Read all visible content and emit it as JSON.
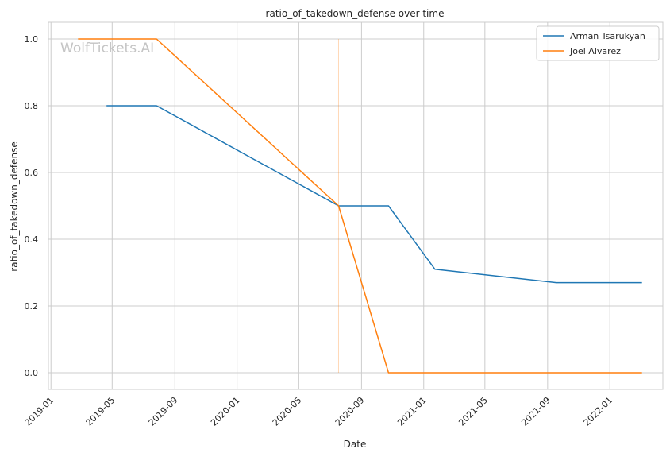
{
  "chart_data": {
    "type": "line",
    "title": "ratio_of_takedown_defense over time",
    "xlabel": "Date",
    "ylabel": "ratio_of_takedown_defense",
    "watermark": "WolfTickets.AI",
    "x_tick_labels": [
      "2019-01",
      "2019-05",
      "2019-09",
      "2020-01",
      "2020-05",
      "2020-09",
      "2021-01",
      "2021-05",
      "2021-09",
      "2022-01"
    ],
    "x_tick_dates": [
      "2019-01-01",
      "2019-05-01",
      "2019-09-01",
      "2020-01-01",
      "2020-05-01",
      "2020-09-01",
      "2021-01-01",
      "2021-05-01",
      "2021-09-01",
      "2022-01-01"
    ],
    "xlim": [
      "2018-12-27",
      "2022-04-15"
    ],
    "y_ticks": [
      0.0,
      0.2,
      0.4,
      0.6,
      0.8,
      1.0
    ],
    "y_tick_labels": [
      "0.0",
      "0.2",
      "0.4",
      "0.6",
      "0.8",
      "1.0"
    ],
    "ylim": [
      -0.05,
      1.05
    ],
    "grid": true,
    "legend_position": "top-right",
    "series": [
      {
        "name": "Arman Tsarukyan",
        "color": "#1f77b4",
        "points": [
          {
            "x": "2019-04-20",
            "y": 0.8
          },
          {
            "x": "2019-07-27",
            "y": 0.8
          },
          {
            "x": "2020-07-18",
            "y": 0.5
          },
          {
            "x": "2020-10-24",
            "y": 0.5
          },
          {
            "x": "2021-01-23",
            "y": 0.31
          },
          {
            "x": "2021-09-18",
            "y": 0.27
          },
          {
            "x": "2022-03-05",
            "y": 0.27
          }
        ]
      },
      {
        "name": "Joel Alvarez",
        "color": "#ff7f0e",
        "points": [
          {
            "x": "2019-02-23",
            "y": 1.0
          },
          {
            "x": "2019-07-27",
            "y": 1.0
          },
          {
            "x": "2020-07-18",
            "y": 0.5
          },
          {
            "x": "2020-10-24",
            "y": 0.0
          },
          {
            "x": "2022-03-05",
            "y": 0.0
          }
        ]
      }
    ],
    "marker_line": {
      "x": "2020-07-18",
      "y_range": [
        0.0,
        1.0
      ],
      "color": "#ff7f0e"
    }
  }
}
